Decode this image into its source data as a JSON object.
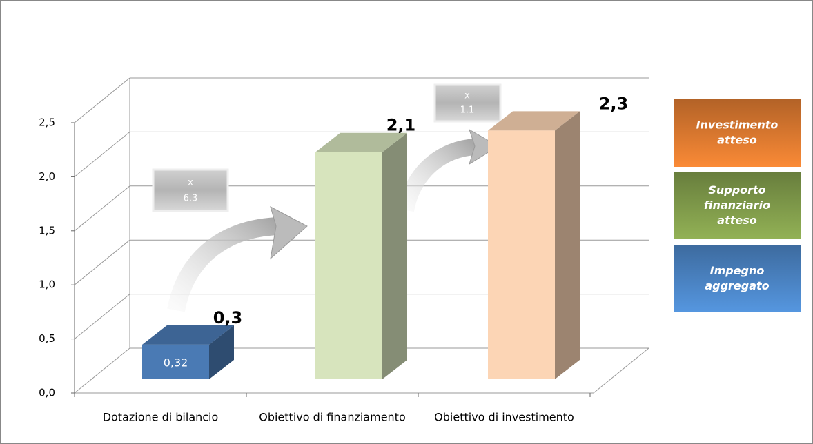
{
  "chart_data": {
    "type": "bar3d",
    "categories": [
      "Dotazione di bilancio",
      "Obiettivo di finanziamento",
      "Obiettivo di investimento"
    ],
    "values": [
      0.32,
      2.1,
      2.3
    ],
    "value_labels": [
      "0,3",
      "2,1",
      "2,3"
    ],
    "inner_labels": [
      "0,32",
      null,
      null
    ],
    "colors": [
      "#4a7ab4",
      "#d7e4bd",
      "#fcd5b5"
    ],
    "ylim": [
      0,
      2.5
    ],
    "yticks": [
      {
        "value": 0,
        "label": "0,0"
      },
      {
        "value": 0.5,
        "label": "0,5"
      },
      {
        "value": 1,
        "label": "1,0"
      },
      {
        "value": 1.5,
        "label": "1,5"
      },
      {
        "value": 2,
        "label": "2,0"
      },
      {
        "value": 2.5,
        "label": "2,5"
      }
    ],
    "grid": true,
    "annotations": [
      {
        "lines": [
          "x",
          "6.3"
        ]
      },
      {
        "lines": [
          "x",
          "1.1"
        ]
      }
    ],
    "legend": {
      "position": "right",
      "entries": [
        {
          "name": "Investimento atteso",
          "color": "#d9782f"
        },
        {
          "name": "Supporto finanziario atteso",
          "color": "#7f9a4a"
        },
        {
          "name": "Impegno aggregato",
          "color": "#4a82c2"
        }
      ]
    }
  }
}
